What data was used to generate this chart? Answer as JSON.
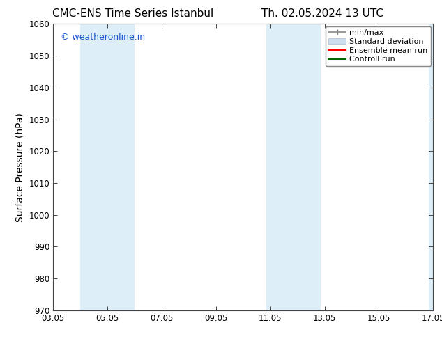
{
  "title_left": "CMC-ENS Time Series Istanbul",
  "title_right": "Th. 02.05.2024 13 UTC",
  "ylabel": "Surface Pressure (hPa)",
  "ylim": [
    970,
    1060
  ],
  "yticks": [
    970,
    980,
    990,
    1000,
    1010,
    1020,
    1030,
    1040,
    1050,
    1060
  ],
  "xlim": [
    0,
    14
  ],
  "xtick_labels": [
    "03.05",
    "05.05",
    "07.05",
    "09.05",
    "11.05",
    "13.05",
    "15.05",
    "17.05"
  ],
  "xtick_positions": [
    0,
    2,
    4,
    6,
    8,
    10,
    12,
    14
  ],
  "watermark": "© weatheronline.in",
  "watermark_color": "#1a56cc",
  "bg_color": "#ffffff",
  "plot_bg_color": "#ffffff",
  "shade_color": "#ddeef8",
  "shade_regions": [
    {
      "xmin": 1.0,
      "xmax": 3.0
    },
    {
      "xmin": 7.85,
      "xmax": 9.85
    },
    {
      "xmin": 13.85,
      "xmax": 14.0
    }
  ],
  "title_fontsize": 11,
  "axis_label_fontsize": 10,
  "tick_fontsize": 8.5,
  "watermark_fontsize": 9,
  "legend_fontsize": 8
}
